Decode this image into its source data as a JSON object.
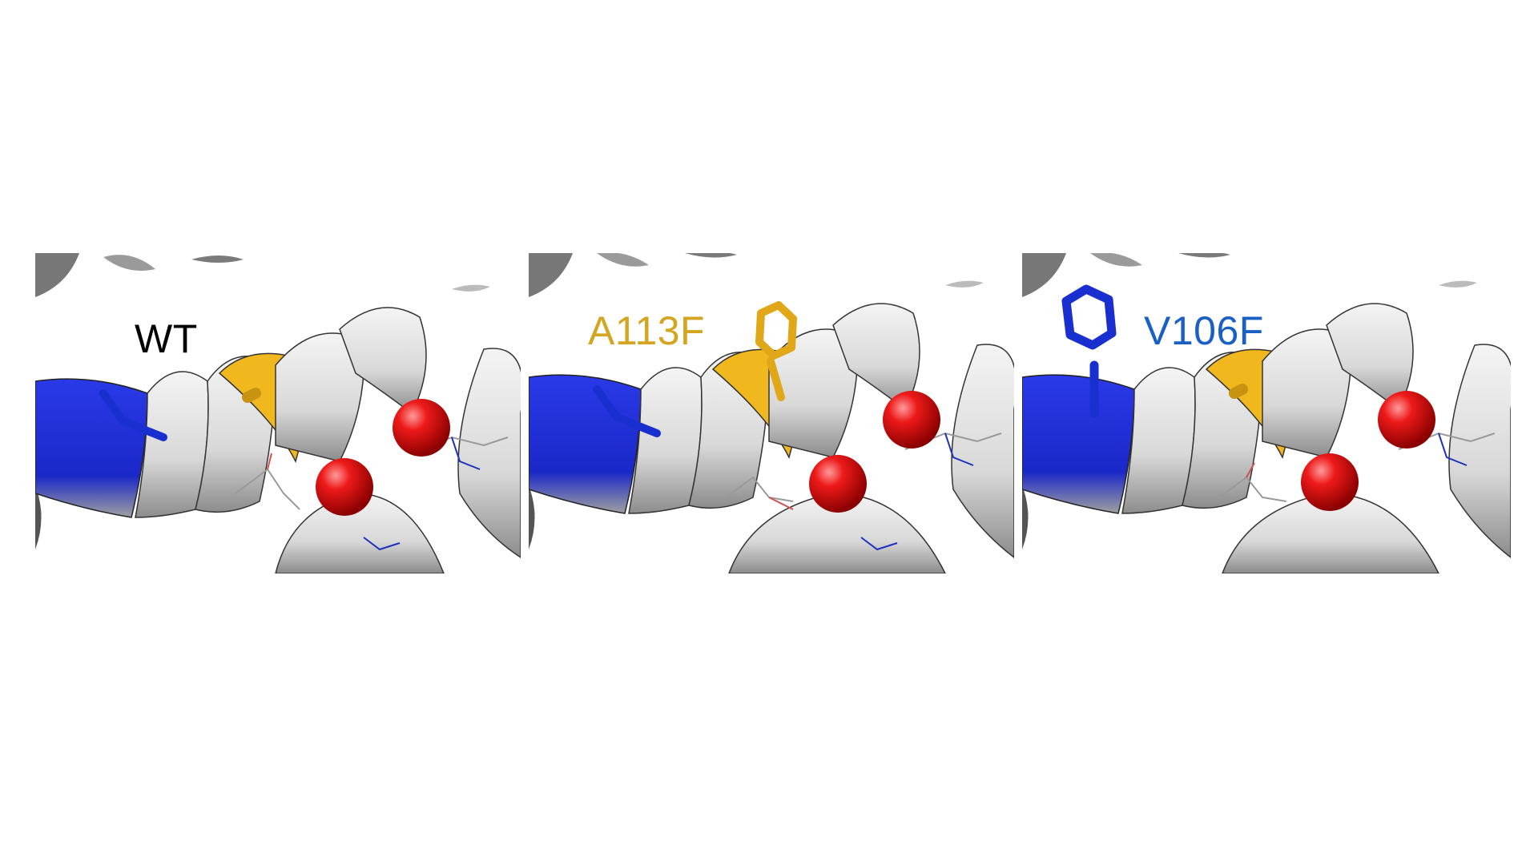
{
  "figure": {
    "panels": [
      {
        "label": "WT",
        "label_color": "#000000"
      },
      {
        "label": "A113F",
        "label_color": "#D4A520"
      },
      {
        "label": "V106F",
        "label_color": "#1A5FC4"
      }
    ],
    "colors": {
      "helix": "#DCDCDC",
      "helix_edge": "#555555",
      "blue_residue": "#1A2FD0",
      "yellow_residue": "#F0B81E",
      "metal_ion": "#E01010"
    }
  }
}
